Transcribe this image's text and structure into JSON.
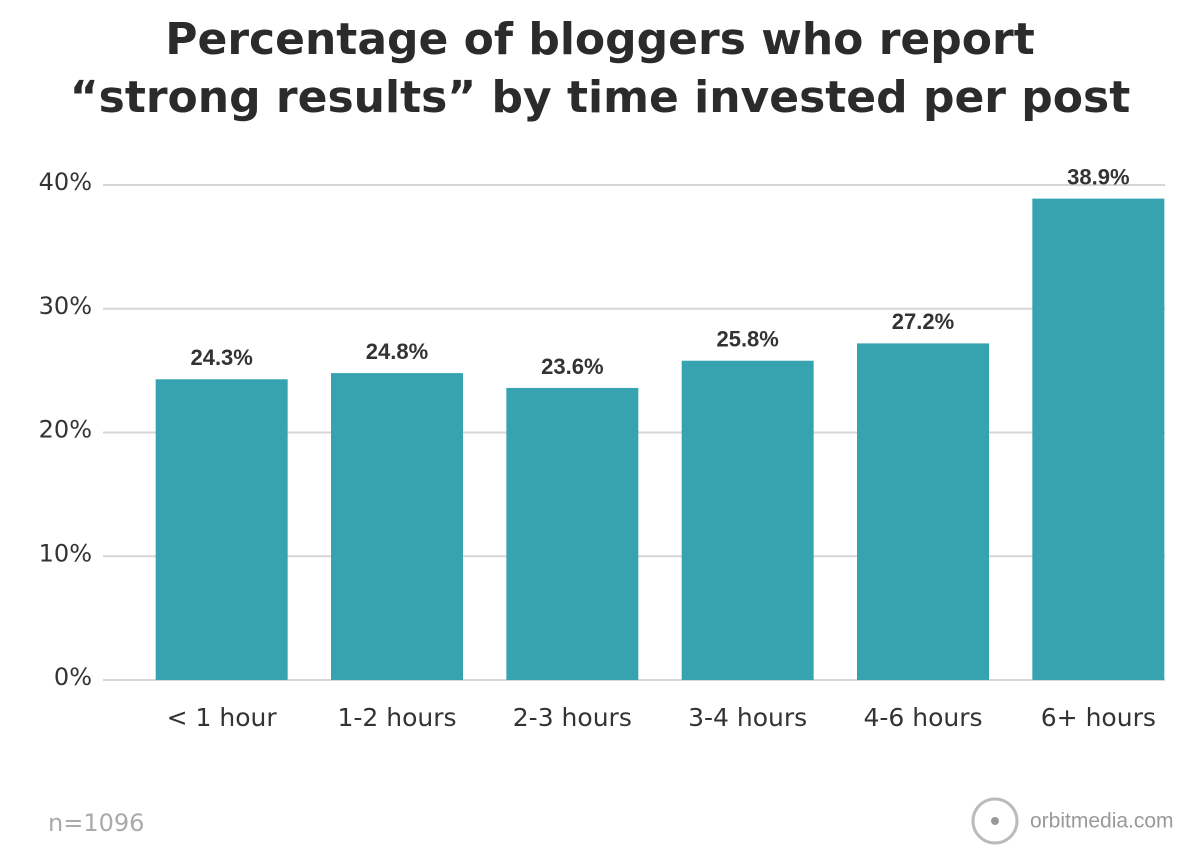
{
  "chart_data": {
    "type": "bar",
    "title": [
      "Percentage of bloggers who report",
      "“strong results” by time invested per post"
    ],
    "categories": [
      "< 1 hour",
      "1-2 hours",
      "2-3 hours",
      "3-4 hours",
      "4-6 hours",
      "6+ hours"
    ],
    "values": [
      24.3,
      24.8,
      23.6,
      25.8,
      27.2,
      38.9
    ],
    "value_labels": [
      "24.3%",
      "24.8%",
      "23.6%",
      "25.8%",
      "27.2%",
      "38.9%"
    ],
    "color": "#37a2b0",
    "ylim": [
      0,
      40
    ],
    "yticks": [
      {
        "value": 0,
        "label": "0%"
      },
      {
        "value": 10,
        "label": "10%"
      },
      {
        "value": 20,
        "label": "20%"
      },
      {
        "value": 30,
        "label": "30%"
      },
      {
        "value": 40,
        "label": "40%"
      }
    ],
    "grid": true,
    "note": "n=1096",
    "source": "orbitmedia.com"
  }
}
